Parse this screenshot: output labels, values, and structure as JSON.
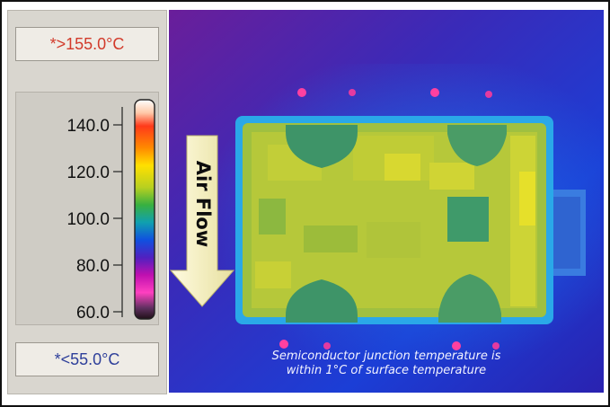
{
  "scale": {
    "max_label": "*>155.0°C",
    "min_label": "*<55.0°C",
    "ticks": [
      "140.0",
      "120.0",
      "100.0",
      "80.0",
      "60.0"
    ]
  },
  "image": {
    "arrow_label": "Air Flow",
    "caption_line1": "Semiconductor junction temperature is",
    "caption_line2": "within 1°C of surface temperature"
  },
  "colors": {
    "max_text": "#d23a2a",
    "min_text": "#2e3f9a",
    "arrow_fill": "#f3f0c8"
  }
}
